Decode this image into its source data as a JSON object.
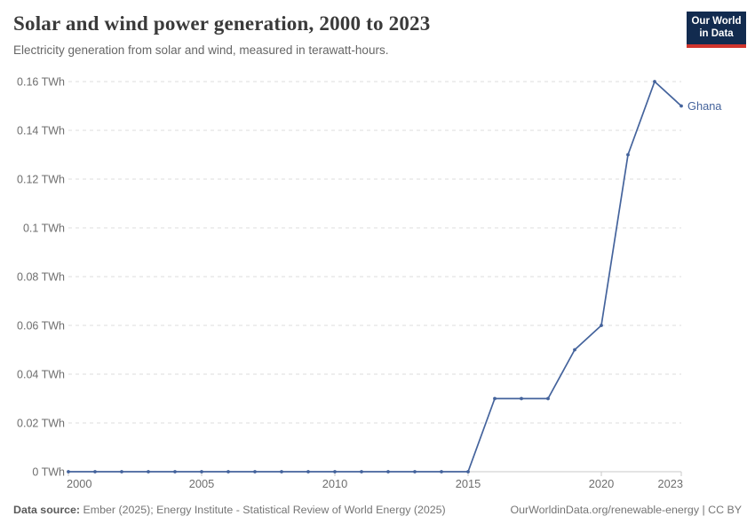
{
  "chart_data": {
    "type": "line",
    "title": "Solar and wind power generation, 2000 to 2023",
    "subtitle": "Electricity generation from solar and wind, measured in terawatt-hours.",
    "unit": "TWh",
    "xlim": [
      2000,
      2023
    ],
    "ylim": [
      0,
      0.16
    ],
    "grid": "horizontal-dashed",
    "legend_position": "end-of-line-label",
    "x": [
      2000,
      2001,
      2002,
      2003,
      2004,
      2005,
      2006,
      2007,
      2008,
      2009,
      2010,
      2011,
      2012,
      2013,
      2014,
      2015,
      2016,
      2017,
      2018,
      2019,
      2020,
      2021,
      2022,
      2023
    ],
    "series": [
      {
        "name": "Ghana",
        "values": [
          0,
          0,
          0,
          0,
          0,
          0,
          0,
          0,
          0,
          0,
          0,
          0,
          0,
          0,
          0,
          0,
          0.03,
          0.03,
          0.03,
          0.05,
          0.06,
          0.13,
          0.16,
          0.15
        ]
      }
    ],
    "x_ticks": [
      2000,
      2005,
      2010,
      2015,
      2020,
      2023
    ],
    "y_ticks": [
      {
        "value": 0,
        "label": "0 TWh"
      },
      {
        "value": 0.02,
        "label": "0.02 TWh"
      },
      {
        "value": 0.04,
        "label": "0.04 TWh"
      },
      {
        "value": 0.06,
        "label": "0.06 TWh"
      },
      {
        "value": 0.08,
        "label": "0.08 TWh"
      },
      {
        "value": 0.1,
        "label": "0.1 TWh"
      },
      {
        "value": 0.12,
        "label": "0.12 TWh"
      },
      {
        "value": 0.14,
        "label": "0.14 TWh"
      },
      {
        "value": 0.16,
        "label": "0.16 TWh"
      }
    ]
  },
  "logo": {
    "line1": "Our World",
    "line2": "in Data"
  },
  "footer": {
    "source_label": "Data source:",
    "source_text": "Ember (2025); Energy Institute - Statistical Review of World Energy (2025)",
    "link_text": "OurWorldinData.org/renewable-energy | CC BY"
  },
  "colors": {
    "line": "#44639C",
    "entity_label": "#44639C",
    "grid": "#DDDDDD",
    "axis": "#C8C8C8",
    "tick_label": "#6E6E6E",
    "title": "#3A3A3A",
    "subtitle": "#666666",
    "logo_bg": "#122B4F",
    "logo_bar": "#D0342C"
  }
}
